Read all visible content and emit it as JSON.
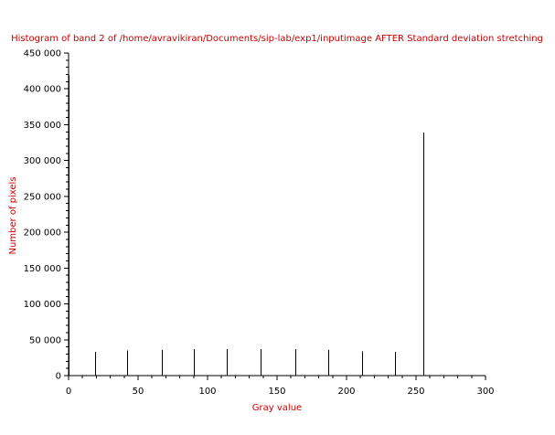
{
  "chart_data": {
    "type": "bar",
    "title": "Histogram of band 2 of /home/avravikiran/Documents/sip-lab/exp1/inputimage AFTER Standard deviation stretching",
    "xlabel": "Gray value",
    "ylabel": "Number of pixels",
    "xlim": [
      0,
      300
    ],
    "ylim": [
      0,
      450000
    ],
    "x_ticks": [
      0,
      50,
      100,
      150,
      200,
      250,
      300
    ],
    "y_ticks": [
      0,
      50000,
      100000,
      150000,
      200000,
      250000,
      300000,
      350000,
      400000,
      450000
    ],
    "x_tick_labels": [
      "0",
      "50",
      "100",
      "150",
      "200",
      "250",
      "300"
    ],
    "y_tick_labels": [
      "0",
      "50 000",
      "100 000",
      "150 000",
      "200 000",
      "250 000",
      "300 000",
      "350 000",
      "400 000",
      "450 000"
    ],
    "x": [
      0,
      19,
      42,
      67,
      90,
      114,
      138,
      163,
      187,
      211,
      235,
      255
    ],
    "values": [
      419000,
      33000,
      35000,
      36000,
      37000,
      37000,
      37000,
      37000,
      36000,
      34000,
      33000,
      339000
    ],
    "grid": false,
    "legend": "none",
    "colors": {
      "title": "#cc0000",
      "axis_labels": "#cc0000",
      "bars": "#000000",
      "axes": "#000000",
      "background": "#ffffff"
    }
  }
}
